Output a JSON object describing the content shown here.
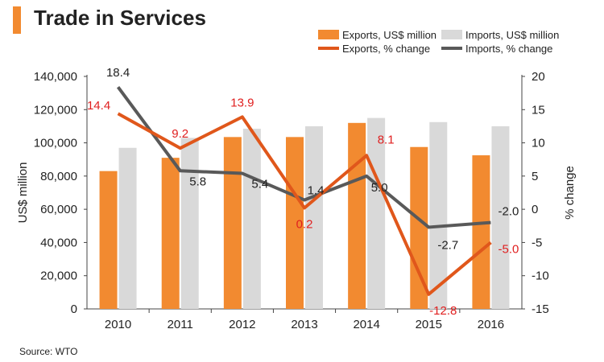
{
  "header": {
    "title": "Trade in Services"
  },
  "footer": {
    "source": "Source: WTO"
  },
  "colors": {
    "accent": "#F28A30",
    "exports_bar": "#F28A30",
    "imports_bar": "#D9D9D9",
    "exports_line": "#E0571B",
    "imports_line": "#595959",
    "exports_label": "#E02020",
    "imports_label": "#222222"
  },
  "chart_data": {
    "type": "bar+line",
    "title": "Trade in Services",
    "categories": [
      "2010",
      "2011",
      "2012",
      "2013",
      "2014",
      "2015",
      "2016"
    ],
    "ylabel_left": "US$ million",
    "ylabel_right": "% change",
    "ylim_left": [
      0,
      140000
    ],
    "ylim_right": [
      -15,
      20
    ],
    "yticks_left": [
      "0",
      "20,000",
      "40,000",
      "60,000",
      "80,000",
      "100,000",
      "120,000",
      "140,000"
    ],
    "yticks_right": [
      "-15",
      "-10",
      "-5",
      "0",
      "5",
      "10",
      "15",
      "20"
    ],
    "bar_series": [
      {
        "name": "Exports, US$ million",
        "values": [
          83000,
          91000,
          103500,
          103500,
          112000,
          97500,
          92500
        ]
      },
      {
        "name": "Imports, US$ million",
        "values": [
          97000,
          103000,
          108500,
          110000,
          115000,
          112500,
          110000
        ]
      }
    ],
    "line_series": [
      {
        "name": "Exports, % change",
        "values": [
          14.4,
          9.2,
          13.9,
          0.2,
          8.1,
          -12.8,
          -5.0
        ],
        "labels": [
          "14.4",
          "9.2",
          "13.9",
          "0.2",
          "8.1",
          "-12.8",
          "-5.0"
        ]
      },
      {
        "name": "Imports, % change",
        "values": [
          18.4,
          5.8,
          5.4,
          1.4,
          5.0,
          -2.7,
          -2.0
        ],
        "labels": [
          "18.4",
          "5.8",
          "5.4",
          "1.4",
          "5.0",
          "-2.7",
          "-2.0"
        ]
      }
    ],
    "legend_position": "top-right"
  }
}
